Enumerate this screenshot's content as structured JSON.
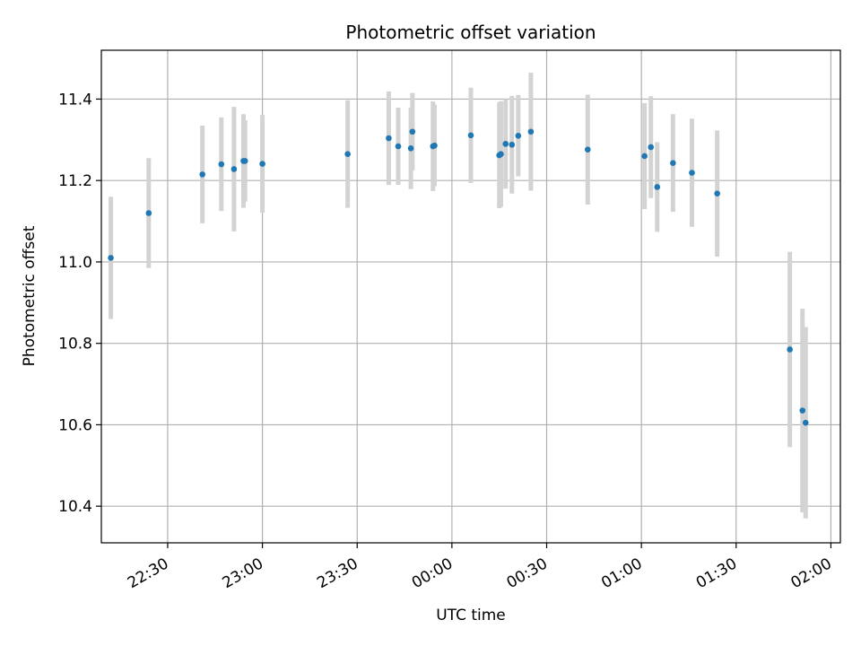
{
  "chart_data": {
    "type": "scatter",
    "title": "Photometric offset variation",
    "xlabel": "UTC time",
    "ylabel": "Photometric offset",
    "x_ticks": [
      "22:30",
      "23:00",
      "23:30",
      "00:00",
      "00:30",
      "01:00",
      "01:30",
      "02:00"
    ],
    "y_ticks": [
      "10.4",
      "10.6",
      "10.8",
      "11.0",
      "11.2",
      "11.4"
    ],
    "xlim": [
      "22:09",
      "02:03"
    ],
    "ylim": [
      10.31,
      11.52
    ],
    "grid": true,
    "point_color": "#1f77b4",
    "errorbar_color": "#d3d3d3",
    "series": [
      {
        "points": [
          {
            "x": "22:12",
            "y": 11.01,
            "yerr": 0.15
          },
          {
            "x": "22:24",
            "y": 11.12,
            "yerr": 0.135
          },
          {
            "x": "22:41",
            "y": 11.215,
            "yerr": 0.12
          },
          {
            "x": "22:47",
            "y": 11.24,
            "yerr": 0.115
          },
          {
            "x": "22:51",
            "y": 11.228,
            "yerr": 0.153
          },
          {
            "x": "22:54",
            "y": 11.248,
            "yerr": 0.115
          },
          {
            "x": "22:54.5",
            "y": 11.248,
            "yerr": 0.1
          },
          {
            "x": "23:00",
            "y": 11.241,
            "yerr": 0.12
          },
          {
            "x": "23:27",
            "y": 11.265,
            "yerr": 0.132
          },
          {
            "x": "23:40",
            "y": 11.304,
            "yerr": 0.115
          },
          {
            "x": "23:43",
            "y": 11.284,
            "yerr": 0.095
          },
          {
            "x": "23:47",
            "y": 11.279,
            "yerr": 0.1
          },
          {
            "x": "23:47.5",
            "y": 11.32,
            "yerr": 0.095
          },
          {
            "x": "23:54",
            "y": 11.284,
            "yerr": 0.11
          },
          {
            "x": "23:54.5",
            "y": 11.286,
            "yerr": 0.1
          },
          {
            "x": "00:06",
            "y": 11.311,
            "yerr": 0.117
          },
          {
            "x": "00:15",
            "y": 11.262,
            "yerr": 0.13
          },
          {
            "x": "00:15.5",
            "y": 11.265,
            "yerr": 0.13
          },
          {
            "x": "00:17",
            "y": 11.29,
            "yerr": 0.11
          },
          {
            "x": "00:19",
            "y": 11.288,
            "yerr": 0.12
          },
          {
            "x": "00:21",
            "y": 11.31,
            "yerr": 0.1
          },
          {
            "x": "00:25",
            "y": 11.32,
            "yerr": 0.145
          },
          {
            "x": "00:43",
            "y": 11.276,
            "yerr": 0.135
          },
          {
            "x": "01:01",
            "y": 11.26,
            "yerr": 0.13
          },
          {
            "x": "01:03",
            "y": 11.282,
            "yerr": 0.125
          },
          {
            "x": "01:05",
            "y": 11.184,
            "yerr": 0.11
          },
          {
            "x": "01:10",
            "y": 11.243,
            "yerr": 0.12
          },
          {
            "x": "01:16",
            "y": 11.219,
            "yerr": 0.133
          },
          {
            "x": "01:24",
            "y": 11.168,
            "yerr": 0.155
          },
          {
            "x": "01:47",
            "y": 10.785,
            "yerr": 0.24
          },
          {
            "x": "01:51",
            "y": 10.635,
            "yerr": 0.25
          },
          {
            "x": "01:52",
            "y": 10.605,
            "yerr": 0.235
          }
        ]
      }
    ]
  }
}
